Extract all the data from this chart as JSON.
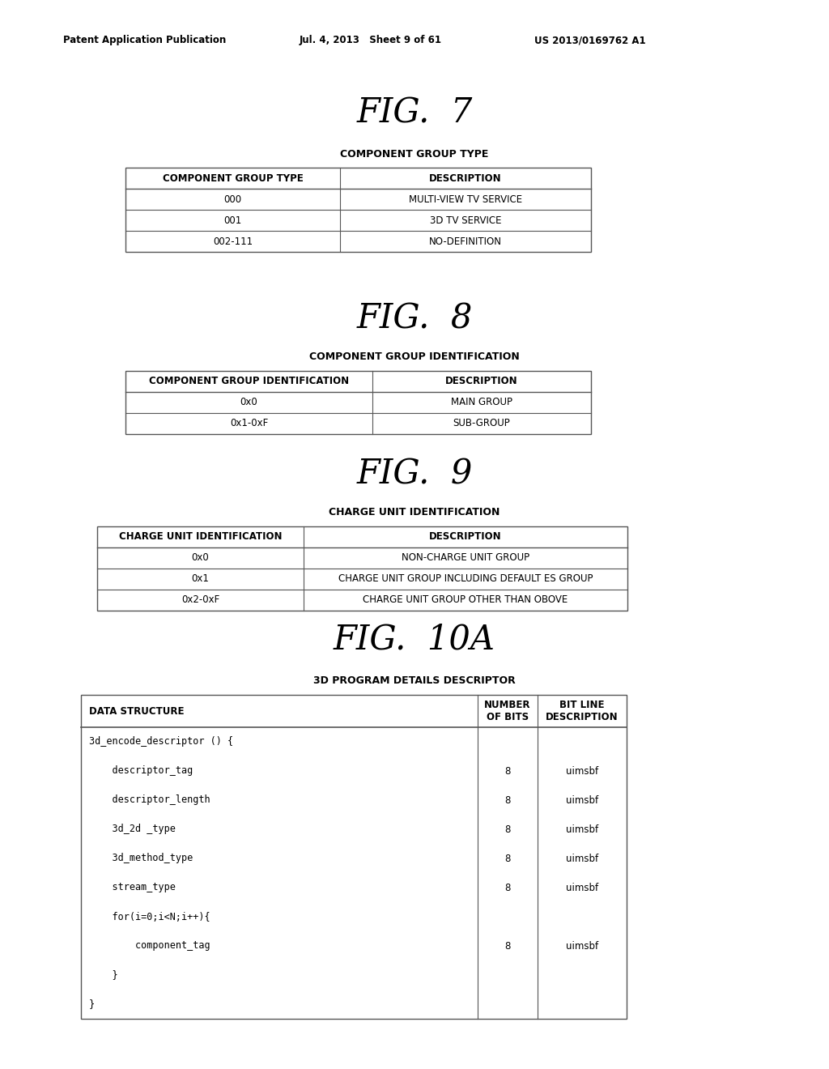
{
  "bg_color": "#ffffff",
  "header_left": "Patent Application Publication",
  "header_mid": "Jul. 4, 2013   Sheet 9 of 61",
  "header_right": "US 2013/0169762 A1",
  "fig7_title": "FIG.  7",
  "fig7_subtitle": "COMPONENT GROUP TYPE",
  "fig7_col1_header": "COMPONENT GROUP TYPE",
  "fig7_col2_header": "DESCRIPTION",
  "fig7_rows": [
    [
      "000",
      "MULTI-VIEW TV SERVICE"
    ],
    [
      "001",
      "3D TV SERVICE"
    ],
    [
      "002-111",
      "NO-DEFINITION"
    ]
  ],
  "fig8_title": "FIG.  8",
  "fig8_subtitle": "COMPONENT GROUP IDENTIFICATION",
  "fig8_col1_header": "COMPONENT GROUP IDENTIFICATION",
  "fig8_col2_header": "DESCRIPTION",
  "fig8_rows": [
    [
      "0x0",
      "MAIN GROUP"
    ],
    [
      "0x1-0xF",
      "SUB-GROUP"
    ]
  ],
  "fig9_title": "FIG.  9",
  "fig9_subtitle": "CHARGE UNIT IDENTIFICATION",
  "fig9_col1_header": "CHARGE UNIT IDENTIFICATION",
  "fig9_col2_header": "DESCRIPTION",
  "fig9_rows": [
    [
      "0x0",
      "NON-CHARGE UNIT GROUP"
    ],
    [
      "0x1",
      "CHARGE UNIT GROUP INCLUDING DEFAULT ES GROUP"
    ],
    [
      "0x2-0xF",
      "CHARGE UNIT GROUP OTHER THAN OBOVE"
    ]
  ],
  "fig10a_title": "FIG.  10A",
  "fig10a_subtitle": "3D PROGRAM DETAILS DESCRIPTOR",
  "fig10a_col1_header": "DATA STRUCTURE",
  "fig10a_col2_header": "NUMBER\nOF BITS",
  "fig10a_col3_header": "BIT LINE\nDESCRIPTION",
  "fig10a_rows": [
    [
      "3d_encode_descriptor () {",
      "",
      ""
    ],
    [
      "    descriptor_tag",
      "8",
      "uimsbf"
    ],
    [
      "    descriptor_length",
      "8",
      "uimsbf"
    ],
    [
      "    3d_2d _type",
      "8",
      "uimsbf"
    ],
    [
      "    3d_method_type",
      "8",
      "uimsbf"
    ],
    [
      "    stream_type",
      "8",
      "uimsbf"
    ],
    [
      "    for(i=0;i<N;i++){",
      "",
      ""
    ],
    [
      "        component_tag",
      "8",
      "uimsbf"
    ],
    [
      "    }",
      "",
      ""
    ],
    [
      "}",
      "",
      ""
    ]
  ]
}
